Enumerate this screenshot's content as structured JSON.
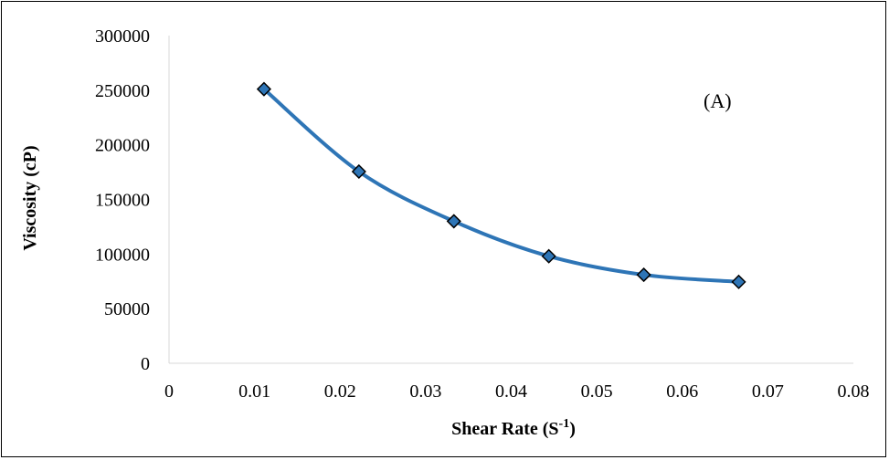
{
  "chart_data": {
    "type": "line",
    "title": "",
    "xlabel": "Shear Rate (S",
    "xlabel_sup": "-1",
    "xlabel_close": ")",
    "ylabel": "Viscosity (cP)",
    "xlim": [
      0,
      0.08
    ],
    "ylim": [
      0,
      300000
    ],
    "x_ticks": [
      0,
      0.01,
      0.02,
      0.03,
      0.04,
      0.05,
      0.06,
      0.07,
      0.08
    ],
    "x_tick_labels": [
      "0",
      "0.01",
      "0.02",
      "0.03",
      "0.04",
      "0.05",
      "0.06",
      "0.07",
      "0.08"
    ],
    "y_ticks": [
      0,
      50000,
      100000,
      150000,
      200000,
      250000,
      300000
    ],
    "y_tick_labels": [
      "0",
      "50000",
      "100000",
      "150000",
      "200000",
      "250000",
      "300000"
    ],
    "grid": false,
    "annotation": "(A)",
    "series": [
      {
        "x": [
          0.0111,
          0.0222,
          0.0333,
          0.0444,
          0.0555,
          0.0666
        ],
        "y": [
          251000,
          175500,
          130000,
          98000,
          81000,
          74500
        ],
        "line_color": "#2E75B6",
        "marker": "diamond",
        "marker_color": "#2E75B6",
        "marker_edge": "#000000"
      }
    ]
  }
}
